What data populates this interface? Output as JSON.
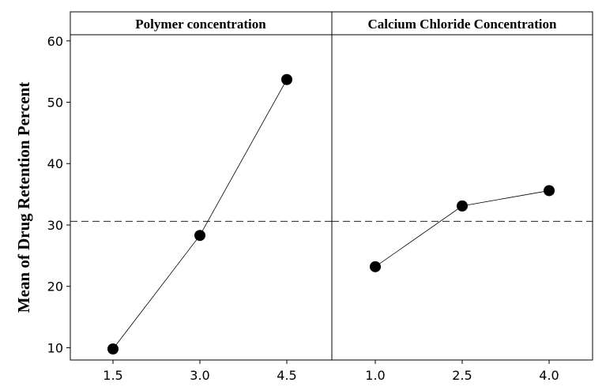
{
  "chart_data": {
    "type": "line",
    "ylabel": "Mean of Drug Retention Percent",
    "ylim": [
      8,
      61
    ],
    "yticks": [
      "10",
      "20",
      "30",
      "40",
      "50",
      "60"
    ],
    "reference_line": 30.6,
    "grid": false,
    "panels": [
      {
        "title": "Polymer concentration",
        "categories": [
          "1.5",
          "3.0",
          "4.5"
        ],
        "values": [
          9.8,
          28.3,
          53.7
        ]
      },
      {
        "title": "Calcium Chloride Concentration",
        "categories": [
          "1.0",
          "2.5",
          "4.0"
        ],
        "values": [
          23.2,
          33.1,
          35.6
        ]
      }
    ]
  }
}
